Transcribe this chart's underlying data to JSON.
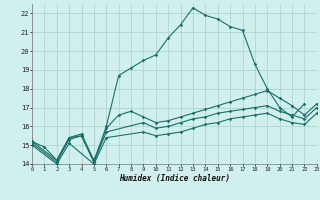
{
  "xlabel": "Humidex (Indice chaleur)",
  "bg_color": "#cff0ec",
  "grid_color": "#b0d4d0",
  "line_color": "#1a7068",
  "xlim": [
    0,
    23
  ],
  "ylim": [
    14,
    22.5
  ],
  "xticks": [
    0,
    1,
    2,
    3,
    4,
    5,
    6,
    7,
    8,
    9,
    10,
    11,
    12,
    13,
    14,
    15,
    16,
    17,
    18,
    19,
    20,
    21,
    22,
    23
  ],
  "yticks": [
    14,
    15,
    16,
    17,
    18,
    19,
    20,
    21,
    22
  ],
  "lines": [
    {
      "x": [
        0,
        1,
        2,
        3,
        4,
        5,
        6,
        7,
        8,
        9,
        10,
        11,
        12,
        13,
        14,
        15,
        16,
        17,
        18,
        19,
        20,
        21,
        22
      ],
      "y": [
        15.2,
        14.9,
        14.2,
        15.4,
        15.5,
        14.1,
        16.0,
        18.7,
        19.1,
        19.5,
        19.8,
        20.7,
        21.4,
        22.3,
        21.9,
        21.7,
        21.3,
        21.1,
        19.3,
        18.0,
        17.0,
        16.5,
        17.2
      ]
    },
    {
      "x": [
        0,
        2,
        3,
        4,
        5,
        6,
        7,
        8,
        9,
        10,
        11,
        12,
        13,
        14,
        15,
        16,
        17,
        18,
        19,
        20,
        21,
        22,
        23
      ],
      "y": [
        15.2,
        14.2,
        15.4,
        15.6,
        14.2,
        15.9,
        16.6,
        16.8,
        16.5,
        16.2,
        16.3,
        16.5,
        16.7,
        16.9,
        17.1,
        17.3,
        17.5,
        17.7,
        17.9,
        17.5,
        17.1,
        16.6,
        17.2
      ]
    },
    {
      "x": [
        0,
        2,
        3,
        4,
        5,
        6,
        9,
        10,
        11,
        12,
        13,
        14,
        15,
        16,
        17,
        18,
        19,
        20,
        21,
        22,
        23
      ],
      "y": [
        15.1,
        14.1,
        15.3,
        15.5,
        14.1,
        15.7,
        16.2,
        15.9,
        16.0,
        16.2,
        16.4,
        16.5,
        16.7,
        16.8,
        16.9,
        17.0,
        17.1,
        16.8,
        16.6,
        16.4,
        17.0
      ]
    },
    {
      "x": [
        0,
        2,
        3,
        5,
        6,
        9,
        10,
        11,
        12,
        13,
        14,
        15,
        16,
        17,
        18,
        19,
        20,
        21,
        22,
        23
      ],
      "y": [
        15.0,
        14.0,
        15.1,
        14.0,
        15.4,
        15.7,
        15.5,
        15.6,
        15.7,
        15.9,
        16.1,
        16.2,
        16.4,
        16.5,
        16.6,
        16.7,
        16.4,
        16.2,
        16.1,
        16.7
      ]
    }
  ]
}
